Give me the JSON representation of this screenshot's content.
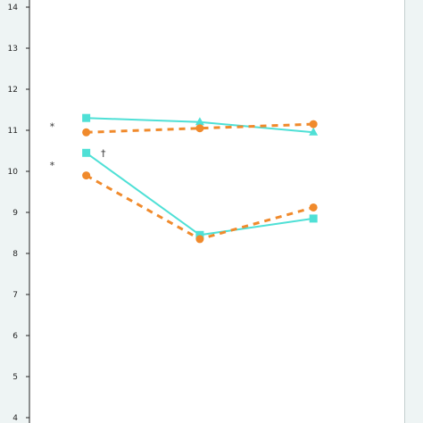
{
  "chart_data": {
    "type": "line",
    "title": "",
    "xlabel": "",
    "ylabel": "",
    "x": [
      1,
      2,
      3
    ],
    "xlim": [
      0.5,
      3.8
    ],
    "ylim": [
      4,
      14
    ],
    "yticks": [
      4,
      5,
      6,
      7,
      8,
      9,
      10,
      11,
      12,
      13,
      14
    ],
    "grid": false,
    "series": [
      {
        "group": "upper",
        "style": "solid",
        "values": [
          11.3,
          11.2,
          10.95
        ],
        "color": "#4fe0d6",
        "markers": [
          "square",
          "triangle",
          "triangle"
        ]
      },
      {
        "group": "upper",
        "style": "dashed",
        "values": [
          10.95,
          11.05,
          11.15
        ],
        "color": "#f08a2c",
        "markers": [
          "circle",
          "circle",
          "circle"
        ]
      },
      {
        "group": "lower",
        "style": "solid",
        "values": [
          10.45,
          8.45,
          8.85
        ],
        "color": "#4fe0d6",
        "markers": [
          "square",
          "square",
          "square"
        ]
      },
      {
        "group": "lower",
        "style": "dashed",
        "values": [
          9.9,
          8.35,
          9.12
        ],
        "color": "#f08a2c",
        "markers": [
          "circle",
          "circle",
          "circle"
        ]
      }
    ],
    "annotations": [
      {
        "text": "*",
        "x": 0.7,
        "y": 11.1
      },
      {
        "text": "*",
        "x": 0.7,
        "y": 10.15
      },
      {
        "text": "†",
        "x": 1.15,
        "y": 10.45
      }
    ]
  },
  "colors": {
    "panel_background": "#eef4f4",
    "axis": "#222222"
  }
}
